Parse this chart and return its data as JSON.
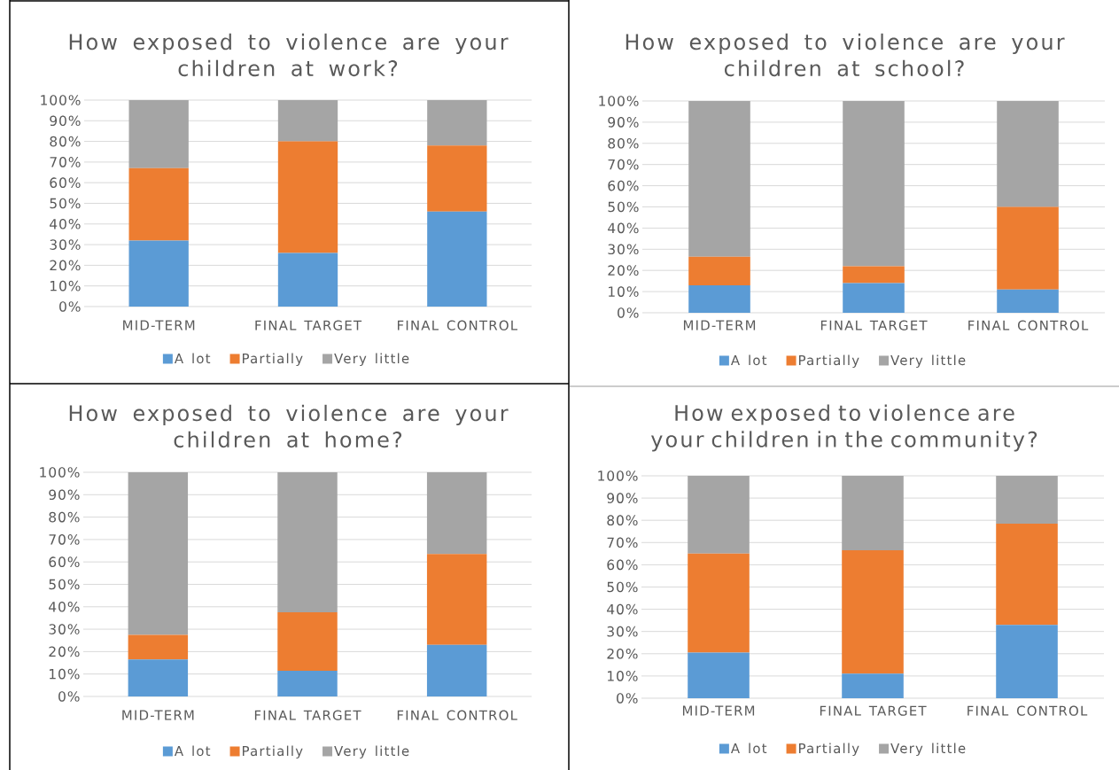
{
  "chart_data": [
    {
      "type": "bar",
      "stacked": true,
      "title": "How exposed to violence are your children at work?",
      "categories": [
        "MID-TERM",
        "FINAL TARGET",
        "FINAL CONTROL"
      ],
      "series": [
        {
          "name": "A lot",
          "color": "#5b9bd5",
          "values": [
            32,
            26,
            46
          ]
        },
        {
          "name": "Partially",
          "color": "#ed7d31",
          "values": [
            35,
            54,
            32
          ]
        },
        {
          "name": "Very little",
          "color": "#a5a5a5",
          "values": [
            33,
            20,
            22
          ]
        }
      ],
      "ylim": [
        0,
        100
      ],
      "yticks": [
        {
          "value": 0,
          "label": "0%"
        },
        {
          "value": 10,
          "label": "10%"
        },
        {
          "value": 20,
          "label": "20%"
        },
        {
          "value": 30,
          "label": "30%"
        },
        {
          "value": 40,
          "label": "40%"
        },
        {
          "value": 50,
          "label": "50%"
        },
        {
          "value": 60,
          "label": "60%"
        },
        {
          "value": 70,
          "label": "70%"
        },
        {
          "value": 80,
          "label": "80%"
        },
        {
          "value": 90,
          "label": "90%"
        },
        {
          "value": 100,
          "label": "100%"
        }
      ],
      "grid": "y",
      "legend": "bottom"
    },
    {
      "type": "bar",
      "stacked": true,
      "title": "How exposed to violence are your children at school?",
      "categories": [
        "MID-TERM",
        "FINAL TARGET",
        "FINAL CONTROL"
      ],
      "series": [
        {
          "name": "A lot",
          "color": "#5b9bd5",
          "values": [
            13,
            14,
            11
          ]
        },
        {
          "name": "Partially",
          "color": "#ed7d31",
          "values": [
            13.5,
            8,
            39
          ]
        },
        {
          "name": "Very little",
          "color": "#a5a5a5",
          "values": [
            73.5,
            78,
            50
          ]
        }
      ],
      "ylim": [
        0,
        100
      ],
      "yticks": [
        {
          "value": 0,
          "label": "0%"
        },
        {
          "value": 10,
          "label": "10%"
        },
        {
          "value": 20,
          "label": "20%"
        },
        {
          "value": 30,
          "label": "30%"
        },
        {
          "value": 40,
          "label": "40%"
        },
        {
          "value": 50,
          "label": "50%"
        },
        {
          "value": 60,
          "label": "60%"
        },
        {
          "value": 70,
          "label": "70%"
        },
        {
          "value": 80,
          "label": "80%"
        },
        {
          "value": 90,
          "label": "90%"
        },
        {
          "value": 100,
          "label": "100%"
        }
      ],
      "grid": "y",
      "legend": "bottom"
    },
    {
      "type": "bar",
      "stacked": true,
      "title": "How exposed to violence are your children at home?",
      "categories": [
        "MID-TERM",
        "FINAL TARGET",
        "FINAL CONTROL"
      ],
      "series": [
        {
          "name": "A lot",
          "color": "#5b9bd5",
          "values": [
            16.5,
            11.5,
            23
          ]
        },
        {
          "name": "Partially",
          "color": "#ed7d31",
          "values": [
            11,
            26,
            40.5
          ]
        },
        {
          "name": "Very little",
          "color": "#a5a5a5",
          "values": [
            72.5,
            62.5,
            36.5
          ]
        }
      ],
      "ylim": [
        0,
        100
      ],
      "yticks": [
        {
          "value": 0,
          "label": "0%"
        },
        {
          "value": 10,
          "label": "10%"
        },
        {
          "value": 20,
          "label": "20%"
        },
        {
          "value": 30,
          "label": "30%"
        },
        {
          "value": 40,
          "label": "40%"
        },
        {
          "value": 50,
          "label": "50%"
        },
        {
          "value": 60,
          "label": "60%"
        },
        {
          "value": 70,
          "label": "70%"
        },
        {
          "value": 80,
          "label": "80%"
        },
        {
          "value": 90,
          "label": "90%"
        },
        {
          "value": 100,
          "label": "100%"
        }
      ],
      "grid": "y",
      "legend": "bottom"
    },
    {
      "type": "bar",
      "stacked": true,
      "title": "How exposed to violence are your children in the community?",
      "categories": [
        "MID-TERM",
        "FINAL TARGET",
        "FINAL CONTROL"
      ],
      "series": [
        {
          "name": "A lot",
          "color": "#5b9bd5",
          "values": [
            20.5,
            11,
            33
          ]
        },
        {
          "name": "Partially",
          "color": "#ed7d31",
          "values": [
            44.5,
            55.5,
            45.5
          ]
        },
        {
          "name": "Very little",
          "color": "#a5a5a5",
          "values": [
            35,
            33.5,
            21.5
          ]
        }
      ],
      "ylim": [
        0,
        100
      ],
      "yticks": [
        {
          "value": 0,
          "label": "0%"
        },
        {
          "value": 10,
          "label": "10%"
        },
        {
          "value": 20,
          "label": "20%"
        },
        {
          "value": 30,
          "label": "30%"
        },
        {
          "value": 40,
          "label": "40%"
        },
        {
          "value": 50,
          "label": "50%"
        },
        {
          "value": 60,
          "label": "60%"
        },
        {
          "value": 70,
          "label": "70%"
        },
        {
          "value": 80,
          "label": "80%"
        },
        {
          "value": 90,
          "label": "90%"
        },
        {
          "value": 100,
          "label": "100%"
        }
      ],
      "grid": "y",
      "legend": "bottom"
    }
  ]
}
